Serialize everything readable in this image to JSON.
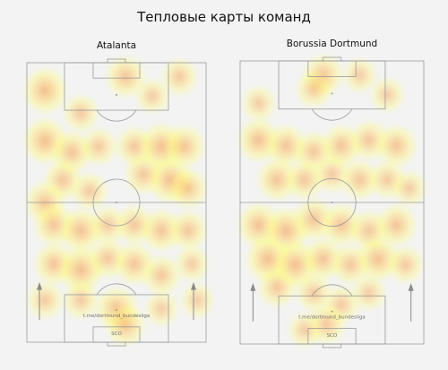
{
  "title": "Тепловые карты команд",
  "colors": {
    "background": "#f3f3f3",
    "lines": "#9a9a9a",
    "heat_low": "#ffff66",
    "heat_mid": "#ffc04a",
    "heat_high": "#f08a3c"
  },
  "chart_data": [
    {
      "type": "heatmap",
      "title": "Atalanta",
      "watermark": "t.me/dortmund_bundesliga",
      "watermark_short": "SCO",
      "hotspots": [
        [
          0.1,
          0.1,
          1.0
        ],
        [
          0.55,
          0.05,
          0.8
        ],
        [
          0.85,
          0.05,
          0.6
        ],
        [
          0.3,
          0.18,
          0.6
        ],
        [
          0.7,
          0.12,
          0.5
        ],
        [
          0.1,
          0.28,
          1.0
        ],
        [
          0.25,
          0.32,
          0.8
        ],
        [
          0.4,
          0.3,
          0.6
        ],
        [
          0.6,
          0.3,
          0.7
        ],
        [
          0.75,
          0.3,
          1.0
        ],
        [
          0.88,
          0.3,
          0.8
        ],
        [
          0.8,
          0.42,
          1.0
        ],
        [
          0.65,
          0.4,
          0.7
        ],
        [
          0.2,
          0.42,
          0.7
        ],
        [
          0.1,
          0.5,
          0.8
        ],
        [
          0.35,
          0.46,
          0.6
        ],
        [
          0.9,
          0.45,
          0.7
        ],
        [
          0.15,
          0.58,
          0.8
        ],
        [
          0.3,
          0.6,
          0.9
        ],
        [
          0.45,
          0.58,
          0.6
        ],
        [
          0.6,
          0.58,
          0.7
        ],
        [
          0.75,
          0.6,
          0.8
        ],
        [
          0.9,
          0.6,
          0.7
        ],
        [
          0.15,
          0.72,
          0.8
        ],
        [
          0.3,
          0.74,
          1.0
        ],
        [
          0.45,
          0.7,
          0.7
        ],
        [
          0.6,
          0.72,
          0.8
        ],
        [
          0.75,
          0.76,
          0.7
        ],
        [
          0.92,
          0.72,
          0.5
        ],
        [
          0.1,
          0.85,
          0.6
        ],
        [
          0.3,
          0.85,
          0.6
        ],
        [
          0.5,
          0.88,
          0.9
        ],
        [
          0.55,
          0.94,
          0.8
        ],
        [
          0.75,
          0.88,
          0.5
        ],
        [
          0.95,
          0.85,
          0.5
        ]
      ]
    },
    {
      "type": "heatmap",
      "title": "Borussia Dortmund",
      "watermark": "t.me/dortmund_bundesliga",
      "watermark_short": "SCO",
      "hotspots": [
        [
          0.45,
          0.05,
          0.8
        ],
        [
          0.4,
          0.1,
          0.6
        ],
        [
          0.65,
          0.05,
          0.5
        ],
        [
          0.1,
          0.15,
          0.5
        ],
        [
          0.8,
          0.12,
          0.5
        ],
        [
          0.1,
          0.28,
          0.9
        ],
        [
          0.25,
          0.3,
          0.8
        ],
        [
          0.4,
          0.32,
          0.7
        ],
        [
          0.55,
          0.3,
          0.8
        ],
        [
          0.7,
          0.28,
          0.7
        ],
        [
          0.85,
          0.3,
          0.8
        ],
        [
          0.2,
          0.42,
          0.8
        ],
        [
          0.35,
          0.42,
          0.7
        ],
        [
          0.5,
          0.4,
          0.6
        ],
        [
          0.65,
          0.42,
          0.7
        ],
        [
          0.8,
          0.42,
          0.6
        ],
        [
          0.92,
          0.45,
          0.5
        ],
        [
          0.1,
          0.58,
          0.9
        ],
        [
          0.25,
          0.6,
          1.0
        ],
        [
          0.4,
          0.56,
          0.8
        ],
        [
          0.55,
          0.58,
          0.8
        ],
        [
          0.7,
          0.6,
          0.7
        ],
        [
          0.85,
          0.58,
          0.8
        ],
        [
          0.15,
          0.7,
          1.0
        ],
        [
          0.3,
          0.72,
          1.0
        ],
        [
          0.45,
          0.7,
          0.8
        ],
        [
          0.6,
          0.72,
          0.7
        ],
        [
          0.75,
          0.7,
          0.9
        ],
        [
          0.9,
          0.72,
          0.6
        ],
        [
          0.2,
          0.8,
          0.7
        ],
        [
          0.4,
          0.82,
          0.6
        ],
        [
          0.55,
          0.86,
          0.6
        ],
        [
          0.7,
          0.82,
          0.5
        ],
        [
          0.47,
          0.93,
          0.7
        ],
        [
          0.35,
          0.95,
          0.5
        ]
      ]
    }
  ]
}
